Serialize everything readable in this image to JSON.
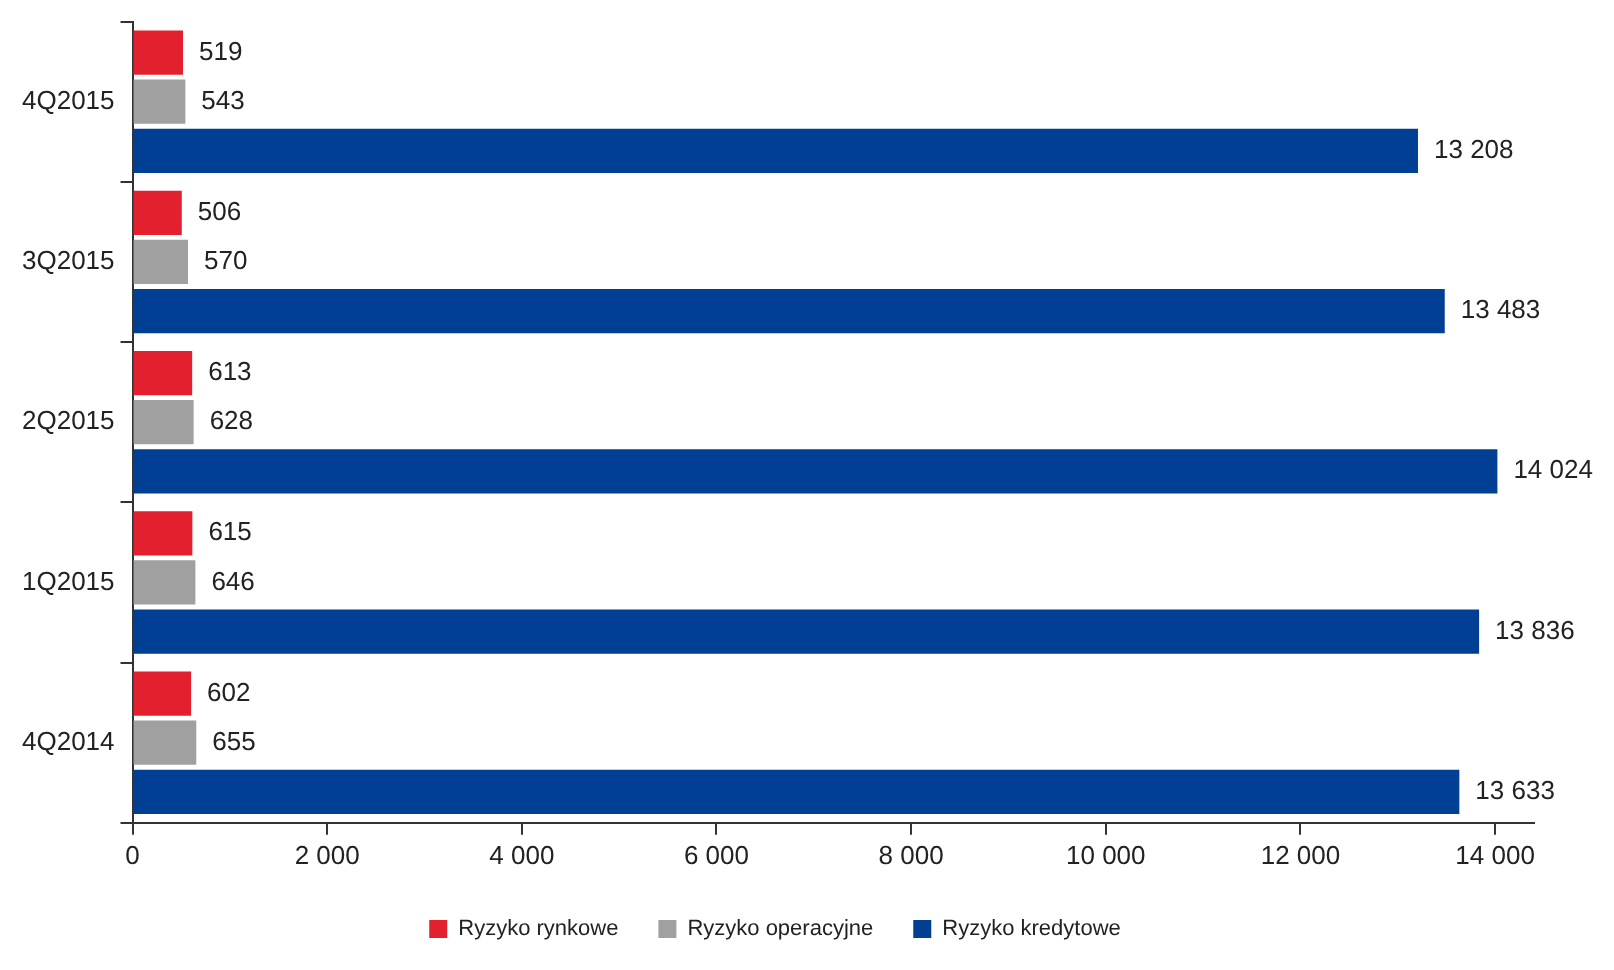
{
  "chart_data": {
    "type": "bar",
    "orientation": "horizontal",
    "categories": [
      "4Q2015",
      "3Q2015",
      "2Q2015",
      "1Q2015",
      "4Q2014"
    ],
    "series": [
      {
        "name": "Ryzyko rynkowe",
        "color": "#e3202e",
        "values": [
          519,
          506,
          613,
          615,
          602
        ],
        "value_labels": [
          "519",
          "506",
          "613",
          "615",
          "602"
        ]
      },
      {
        "name": "Ryzyko operacyjne",
        "color": "#a0a0a0",
        "values": [
          543,
          570,
          628,
          646,
          655
        ],
        "value_labels": [
          "543",
          "570",
          "628",
          "646",
          "655"
        ]
      },
      {
        "name": "Ryzyko kredytowe",
        "color": "#003f94",
        "values": [
          13208,
          13483,
          14024,
          13836,
          13633
        ],
        "value_labels": [
          "13 208",
          "13 483",
          "14 024",
          "13 836",
          "13 633"
        ]
      }
    ],
    "xlim": [
      0,
      14400
    ],
    "xticks": [
      0,
      {
        "value": 2000,
        "label": "2 000"
      },
      {
        "value": 4000,
        "label": "4 000"
      },
      {
        "value": 6000,
        "label": "6 000"
      },
      {
        "value": 8000,
        "label": "8 000"
      },
      {
        "value": 10000,
        "label": "10 000"
      },
      {
        "value": 12000,
        "label": "12 000"
      },
      {
        "value": 14000,
        "label": "14 000"
      }
    ],
    "grid": false,
    "legend": "bottom"
  }
}
